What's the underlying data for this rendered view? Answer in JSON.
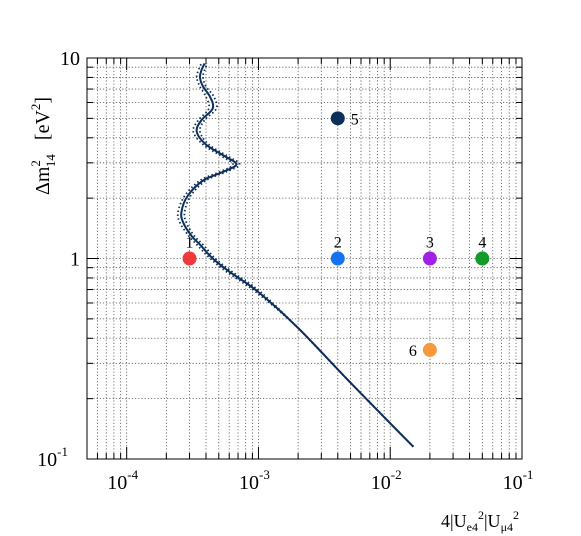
{
  "chart_data": {
    "type": "scatter",
    "title": "",
    "xscale": "log",
    "yscale": "log",
    "xlim": [
      5e-05,
      0.1
    ],
    "ylim": [
      0.1,
      10
    ],
    "grid": true,
    "xlabel_parts": {
      "base": "4|U",
      "sub1": "e4",
      "sup1": "2",
      "mid": "|U",
      "sub2": "μ4",
      "sup2": "2"
    },
    "ylabel_parts": {
      "base": "Δm",
      "sup": "2",
      "sub": "14",
      "unit": "[eV",
      "unit_sup": "2",
      "unit_close": "]"
    },
    "x_ticks": [
      {
        "value": 0.0001,
        "base": "10",
        "exp": "-4"
      },
      {
        "value": 0.001,
        "base": "10",
        "exp": "-3"
      },
      {
        "value": 0.01,
        "base": "10",
        "exp": "-2"
      },
      {
        "value": 0.1,
        "base": "10",
        "exp": "-1"
      }
    ],
    "y_ticks": [
      {
        "value": 0.1,
        "base": "10",
        "exp": "-1"
      },
      {
        "value": 1,
        "base": "1",
        "exp": ""
      },
      {
        "value": 10,
        "base": "10",
        "exp": ""
      }
    ],
    "points": [
      {
        "label": "1",
        "x": 0.0003,
        "y": 1.0,
        "color": "#ee3a3a",
        "label_side": "above"
      },
      {
        "label": "2",
        "x": 0.004,
        "y": 1.0,
        "color": "#1673f0",
        "label_side": "above"
      },
      {
        "label": "3",
        "x": 0.02,
        "y": 1.0,
        "color": "#a020e8",
        "label_side": "above"
      },
      {
        "label": "4",
        "x": 0.05,
        "y": 1.0,
        "color": "#139b2a",
        "label_side": "above"
      },
      {
        "label": "5",
        "x": 0.004,
        "y": 5.0,
        "color": "#0e2f5a",
        "label_side": "right"
      },
      {
        "label": "6",
        "x": 0.02,
        "y": 0.35,
        "color": "#f7983a",
        "label_side": "left"
      }
    ],
    "curves": [
      {
        "style": "solid",
        "color": "#0e2f5a",
        "x": [
          0.015,
          0.005,
          0.002,
          0.001,
          0.0006,
          0.00045,
          0.00037,
          0.00031,
          0.00027,
          0.00026,
          0.00029,
          0.00038,
          0.00055,
          0.00068,
          0.00055,
          0.0004,
          0.00034,
          0.00037,
          0.00045,
          0.00043,
          0.00038,
          0.00036,
          0.00037,
          0.00039
        ],
        "y": [
          0.115,
          0.24,
          0.45,
          0.68,
          0.86,
          1.0,
          1.15,
          1.3,
          1.5,
          1.7,
          2.05,
          2.45,
          2.72,
          2.95,
          3.25,
          3.7,
          4.3,
          4.9,
          5.6,
          6.4,
          7.2,
          8.0,
          8.7,
          9.4
        ]
      },
      {
        "style": "dotted",
        "color": "#0e2f5a",
        "x": [
          0.015,
          0.005,
          0.002,
          0.00096,
          0.00057,
          0.00043,
          0.00035,
          0.000295,
          0.000255,
          0.000245,
          0.000275,
          0.00036,
          0.00052,
          0.00064,
          0.00052,
          0.00038,
          0.00032,
          0.00035,
          0.00042,
          0.0004,
          0.00036,
          0.00034,
          0.00035,
          0.00037
        ],
        "y": [
          0.115,
          0.24,
          0.45,
          0.68,
          0.86,
          1.0,
          1.15,
          1.3,
          1.5,
          1.7,
          2.05,
          2.45,
          2.72,
          2.95,
          3.25,
          3.7,
          4.3,
          4.9,
          5.6,
          6.4,
          7.2,
          8.0,
          8.7,
          9.4
        ]
      },
      {
        "style": "dotted",
        "color": "#0e2f5a",
        "x": [
          0.015,
          0.005,
          0.002,
          0.00104,
          0.00063,
          0.00047,
          0.00039,
          0.000325,
          0.000285,
          0.000275,
          0.000305,
          0.0004,
          0.00058,
          0.00072,
          0.00058,
          0.00042,
          0.00036,
          0.00039,
          0.00048,
          0.00046,
          0.0004,
          0.00038,
          0.00039,
          0.00041
        ],
        "y": [
          0.115,
          0.24,
          0.45,
          0.68,
          0.86,
          1.0,
          1.15,
          1.3,
          1.5,
          1.7,
          2.05,
          2.45,
          2.72,
          2.95,
          3.25,
          3.7,
          4.3,
          4.9,
          5.6,
          6.4,
          7.2,
          8.0,
          8.7,
          9.4
        ]
      }
    ]
  }
}
